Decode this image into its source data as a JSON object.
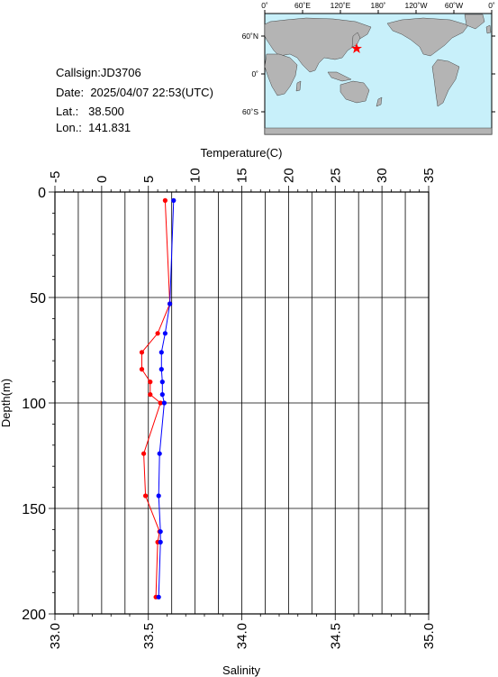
{
  "station": {
    "callsign_label": "Callsign:",
    "callsign": "JD3706",
    "date_label": "Date:",
    "date": "2025/04/07 22:53(UTC)",
    "lat_label": "Lat.:",
    "lat": "38.500",
    "lon_label": "Lon.:",
    "lon": "141.831"
  },
  "map": {
    "top_ticks": [
      "0˚",
      "60˚E",
      "120˚E",
      "180˚",
      "120˚W",
      "60˚W",
      "0˚"
    ],
    "lat_ticks": [
      "60˚N",
      "0˚",
      "60˚S"
    ],
    "marker": "red-star",
    "ocean_color": "#c8f0fa",
    "land_color": "#b4b4b4"
  },
  "chart_data": {
    "type": "line",
    "x_top_label": "Temperature(C)",
    "x_top_ticks": [
      "-5",
      "0",
      "5",
      "10",
      "15",
      "20",
      "25",
      "30",
      "35"
    ],
    "x_top_range": [
      -5,
      35
    ],
    "x_bottom_label": "Salinity",
    "x_bottom_ticks": [
      "33.0",
      "33.5",
      "34.0",
      "34.5",
      "35.0"
    ],
    "x_bottom_range": [
      33.0,
      35.0
    ],
    "ylabel": "Depth(m)",
    "y_ticks": [
      "0",
      "50",
      "100",
      "150",
      "200"
    ],
    "y_range": [
      0,
      200
    ],
    "y_inverted": true,
    "grid": true,
    "series": [
      {
        "color": "#ff0000",
        "axis": "temperature",
        "points": [
          [
            6.8,
            4
          ],
          [
            7.3,
            53
          ],
          [
            6.0,
            67
          ],
          [
            4.3,
            76
          ],
          [
            4.3,
            84
          ],
          [
            5.2,
            90
          ],
          [
            5.2,
            96
          ],
          [
            6.3,
            100
          ],
          [
            4.5,
            124
          ],
          [
            4.7,
            144
          ],
          [
            6.2,
            161
          ],
          [
            6.0,
            166
          ],
          [
            5.8,
            192
          ]
        ]
      },
      {
        "color": "#0000ff",
        "axis": "salinity",
        "points": [
          [
            33.635,
            4
          ],
          [
            33.615,
            53
          ],
          [
            33.59,
            67
          ],
          [
            33.57,
            76
          ],
          [
            33.57,
            84
          ],
          [
            33.575,
            90
          ],
          [
            33.575,
            96
          ],
          [
            33.585,
            100
          ],
          [
            33.56,
            124
          ],
          [
            33.555,
            144
          ],
          [
            33.565,
            161
          ],
          [
            33.565,
            166
          ],
          [
            33.555,
            192
          ]
        ]
      }
    ]
  }
}
